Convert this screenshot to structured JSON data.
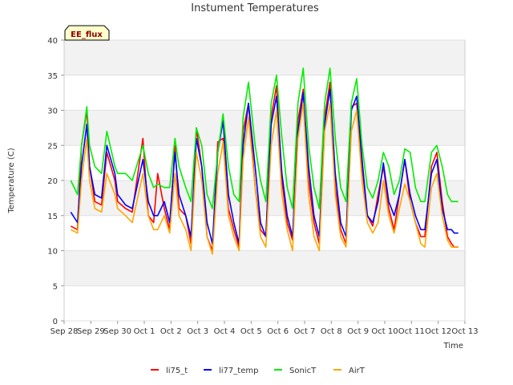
{
  "chart_data": {
    "type": "line",
    "title": "Instument Temperatures",
    "xlabel": "Time",
    "ylabel": "Temperature (C)",
    "tag": "EE_flux",
    "ylim": [
      0,
      40
    ],
    "xlim": [
      0,
      15
    ],
    "y_ticks": [
      "0",
      "5",
      "10",
      "15",
      "20",
      "25",
      "30",
      "35",
      "40"
    ],
    "x_ticks": [
      "Sep 28",
      "Sep 29",
      "Sep 30",
      "Oct 1",
      "Oct 2",
      "Oct 3",
      "Oct 4",
      "Oct 5",
      "Oct 6",
      "Oct 7",
      "Oct 8",
      "Oct 9",
      "Oct 10",
      "Oct 11",
      "Oct 12",
      "Oct 13"
    ],
    "x_unit": "days since Sep 28",
    "grid": "horizontal bands",
    "legend": "bottom-center",
    "series": [
      {
        "name": "li75_t",
        "color": "#ff0000",
        "x": [
          0.25,
          0.5,
          0.65,
          0.85,
          0.95,
          1.15,
          1.4,
          1.6,
          1.9,
          2.0,
          2.3,
          2.55,
          2.95,
          3.15,
          3.35,
          3.5,
          3.75,
          3.95,
          4.15,
          4.3,
          4.55,
          4.75,
          4.95,
          5.15,
          5.35,
          5.55,
          5.75,
          5.95,
          6.15,
          6.35,
          6.55,
          6.7,
          6.9,
          7.15,
          7.35,
          7.55,
          7.75,
          7.95,
          8.15,
          8.35,
          8.55,
          8.75,
          8.95,
          9.15,
          9.35,
          9.55,
          9.75,
          9.95,
          10.15,
          10.35,
          10.55,
          10.75,
          10.95,
          11.15,
          11.35,
          11.55,
          11.75,
          11.95,
          12.15,
          12.35,
          12.55,
          12.75,
          12.95,
          13.15,
          13.35,
          13.5,
          13.75,
          13.95,
          14.15,
          14.35,
          14.5,
          14.6,
          14.75
        ],
        "values": [
          13.5,
          13,
          25,
          30,
          22,
          17,
          16.5,
          24,
          20,
          17,
          16,
          15.5,
          26,
          15,
          14,
          21,
          16,
          13,
          25,
          16,
          15,
          11,
          27.5,
          22,
          12,
          10,
          25.5,
          26,
          16,
          13,
          10.5,
          27,
          31,
          19,
          13,
          12,
          29,
          33.5,
          20,
          14,
          11.5,
          28.5,
          33,
          20,
          14,
          11,
          29,
          34,
          19,
          13,
          11,
          30.5,
          31,
          22,
          15,
          13.5,
          18,
          22,
          16,
          13,
          18,
          23,
          17,
          14,
          12,
          12,
          22,
          24,
          17,
          12,
          11,
          10.5,
          10.5
        ]
      },
      {
        "name": "li77_temp",
        "color": "#0000ff",
        "x": [
          0.25,
          0.5,
          0.65,
          0.85,
          0.95,
          1.15,
          1.4,
          1.6,
          1.9,
          2.0,
          2.3,
          2.55,
          2.95,
          3.15,
          3.35,
          3.5,
          3.75,
          3.95,
          4.15,
          4.3,
          4.55,
          4.75,
          4.95,
          5.15,
          5.35,
          5.55,
          5.75,
          5.95,
          6.15,
          6.35,
          6.55,
          6.7,
          6.9,
          7.15,
          7.35,
          7.55,
          7.75,
          7.95,
          8.15,
          8.35,
          8.55,
          8.75,
          8.95,
          9.15,
          9.35,
          9.55,
          9.75,
          9.95,
          10.15,
          10.35,
          10.55,
          10.75,
          10.95,
          11.15,
          11.35,
          11.55,
          11.75,
          11.95,
          12.15,
          12.35,
          12.55,
          12.75,
          12.95,
          13.15,
          13.35,
          13.5,
          13.75,
          13.95,
          14.15,
          14.35,
          14.5,
          14.6,
          14.75
        ],
        "values": [
          15.5,
          14,
          22,
          28,
          22,
          18,
          17.5,
          25,
          21,
          18,
          16.5,
          16,
          23,
          17,
          15,
          15,
          17,
          14,
          24,
          18,
          15,
          12,
          26,
          22,
          14,
          11,
          24,
          28.5,
          18,
          14,
          11,
          25,
          31,
          22,
          14,
          12,
          28,
          32,
          21,
          15,
          12,
          27,
          32.5,
          22,
          15,
          12,
          28,
          33,
          21,
          14,
          12,
          30,
          32,
          23,
          15,
          14,
          17,
          22.5,
          17,
          15,
          18,
          23,
          18,
          15,
          13,
          13,
          21,
          23,
          16,
          13,
          13,
          12.5,
          12.5
        ]
      },
      {
        "name": "SonicT",
        "color": "#00ee00",
        "x": [
          0.25,
          0.5,
          0.65,
          0.85,
          0.95,
          1.15,
          1.4,
          1.6,
          1.9,
          2.0,
          2.3,
          2.55,
          2.95,
          3.15,
          3.35,
          3.5,
          3.75,
          3.95,
          4.15,
          4.3,
          4.55,
          4.75,
          4.95,
          5.15,
          5.35,
          5.55,
          5.75,
          5.95,
          6.15,
          6.35,
          6.55,
          6.7,
          6.9,
          7.15,
          7.35,
          7.55,
          7.75,
          7.95,
          8.15,
          8.35,
          8.55,
          8.75,
          8.95,
          9.15,
          9.35,
          9.55,
          9.75,
          9.95,
          10.15,
          10.35,
          10.55,
          10.75,
          10.95,
          11.15,
          11.35,
          11.55,
          11.75,
          11.95,
          12.15,
          12.35,
          12.55,
          12.75,
          12.95,
          13.15,
          13.35,
          13.5,
          13.75,
          13.95,
          14.15,
          14.35,
          14.5,
          14.6,
          14.75
        ],
        "values": [
          20,
          18,
          25,
          30.5,
          25,
          22,
          21,
          27,
          22,
          21,
          21,
          20,
          25,
          21,
          19,
          19.5,
          19,
          19,
          26,
          22,
          19,
          17,
          27.5,
          25,
          18,
          16,
          24,
          29.5,
          22,
          18,
          17,
          29,
          34,
          25,
          20,
          17,
          31,
          35,
          26,
          19,
          16,
          31,
          36,
          25,
          19,
          16,
          31,
          36,
          26,
          19,
          17,
          31,
          34.5,
          25,
          19,
          17.5,
          20,
          24,
          22,
          18,
          20,
          24.5,
          24,
          19,
          17,
          17,
          24,
          25,
          22,
          18,
          17,
          17,
          17
        ]
      },
      {
        "name": "AirT",
        "color": "#ffa500",
        "x": [
          0.25,
          0.5,
          0.65,
          0.85,
          0.95,
          1.15,
          1.4,
          1.6,
          1.9,
          2.0,
          2.3,
          2.55,
          2.95,
          3.15,
          3.35,
          3.5,
          3.75,
          3.95,
          4.15,
          4.3,
          4.55,
          4.75,
          4.95,
          5.15,
          5.35,
          5.55,
          5.75,
          5.95,
          6.15,
          6.35,
          6.55,
          6.7,
          6.9,
          7.15,
          7.35,
          7.55,
          7.75,
          7.95,
          8.15,
          8.35,
          8.55,
          8.75,
          8.95,
          9.15,
          9.35,
          9.55,
          9.75,
          9.95,
          10.15,
          10.35,
          10.55,
          10.75,
          10.95,
          11.15,
          11.35,
          11.55,
          11.75,
          11.95,
          12.15,
          12.35,
          12.55,
          12.75,
          12.95,
          13.15,
          13.35,
          13.5,
          13.75,
          13.95,
          14.15,
          14.35,
          14.5,
          14.6,
          14.75
        ],
        "values": [
          13,
          12.5,
          20,
          26,
          20,
          16,
          15.5,
          21,
          18,
          16,
          15,
          14,
          21,
          15,
          13,
          13,
          15,
          12.5,
          21,
          15,
          13,
          10,
          24,
          20,
          12,
          9.5,
          21,
          25.5,
          15,
          12,
          10,
          23,
          29,
          19,
          12,
          10.5,
          25,
          30,
          18,
          13,
          10,
          26,
          31,
          18,
          12,
          10,
          27,
          31,
          18,
          12,
          10.5,
          27,
          30,
          20,
          14,
          12.5,
          14,
          20,
          15,
          12.5,
          16,
          19.5,
          17,
          14,
          11,
          10.5,
          19,
          21,
          15,
          11.5,
          10.5,
          10.5,
          10.5
        ]
      }
    ]
  }
}
